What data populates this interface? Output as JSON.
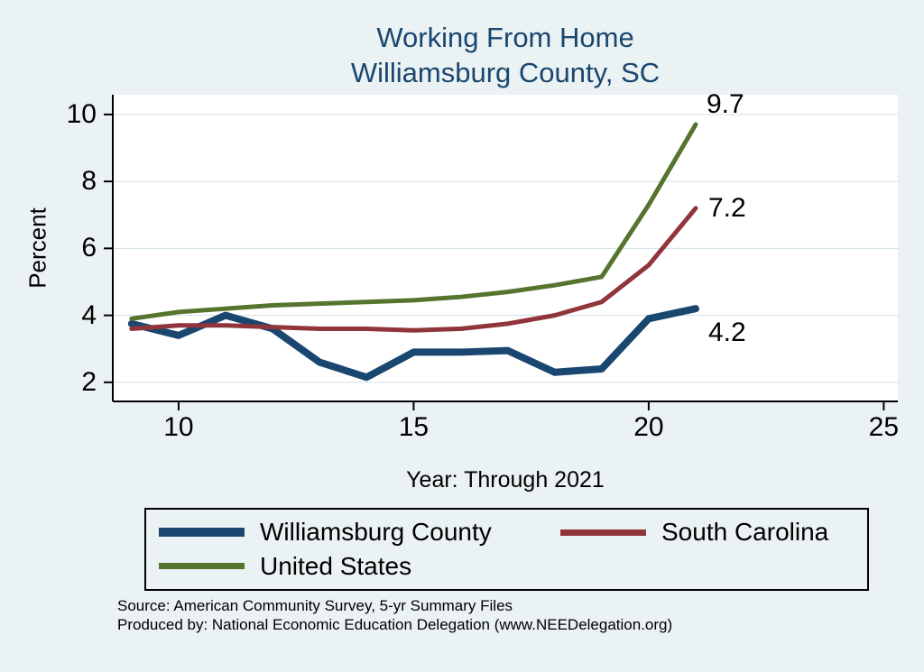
{
  "title": {
    "line1": "Working From Home",
    "line2": "Williamsburg County, SC"
  },
  "chart_data": {
    "type": "line",
    "x": [
      9,
      10,
      11,
      12,
      13,
      14,
      15,
      16,
      17,
      18,
      19,
      20,
      21
    ],
    "series": [
      {
        "name": "Williamsburg County",
        "color": "#1a476f",
        "line_width": 8,
        "end_label": "4.2",
        "values": [
          3.75,
          3.4,
          4.0,
          3.6,
          2.6,
          2.15,
          2.9,
          2.9,
          2.95,
          2.3,
          2.4,
          3.9,
          4.2
        ]
      },
      {
        "name": "South Carolina",
        "color": "#90353b",
        "line_width": 5,
        "end_label": "7.2",
        "values": [
          3.6,
          3.7,
          3.7,
          3.65,
          3.6,
          3.6,
          3.55,
          3.6,
          3.75,
          4.0,
          4.4,
          5.5,
          7.2
        ]
      },
      {
        "name": "United States",
        "color": "#55752f",
        "line_width": 5,
        "end_label": "9.7",
        "values": [
          3.9,
          4.1,
          4.2,
          4.3,
          4.35,
          4.4,
          4.45,
          4.55,
          4.7,
          4.9,
          5.15,
          7.3,
          9.7
        ]
      }
    ],
    "xlabel": "Year: Through 2021",
    "ylabel": "Percent",
    "xlim": [
      8.6,
      25.3
    ],
    "ylim": [
      1.43,
      10.59
    ],
    "xticks": [
      10,
      15,
      20,
      25
    ],
    "yticks": [
      2,
      4,
      6,
      8,
      10
    ],
    "grid": true,
    "legend_position": "bottom"
  },
  "footer": {
    "source": "Source: American Community Survey, 5-yr Summary Files",
    "produced_by": "Produced by: National Economic Education Delegation (www.NEEDelegation.org)"
  },
  "colors": {
    "background": "#eaf2f3",
    "plot_background": "#ffffff",
    "grid": "#cfe0e6",
    "axis": "#000000",
    "title": "#1a476f"
  }
}
